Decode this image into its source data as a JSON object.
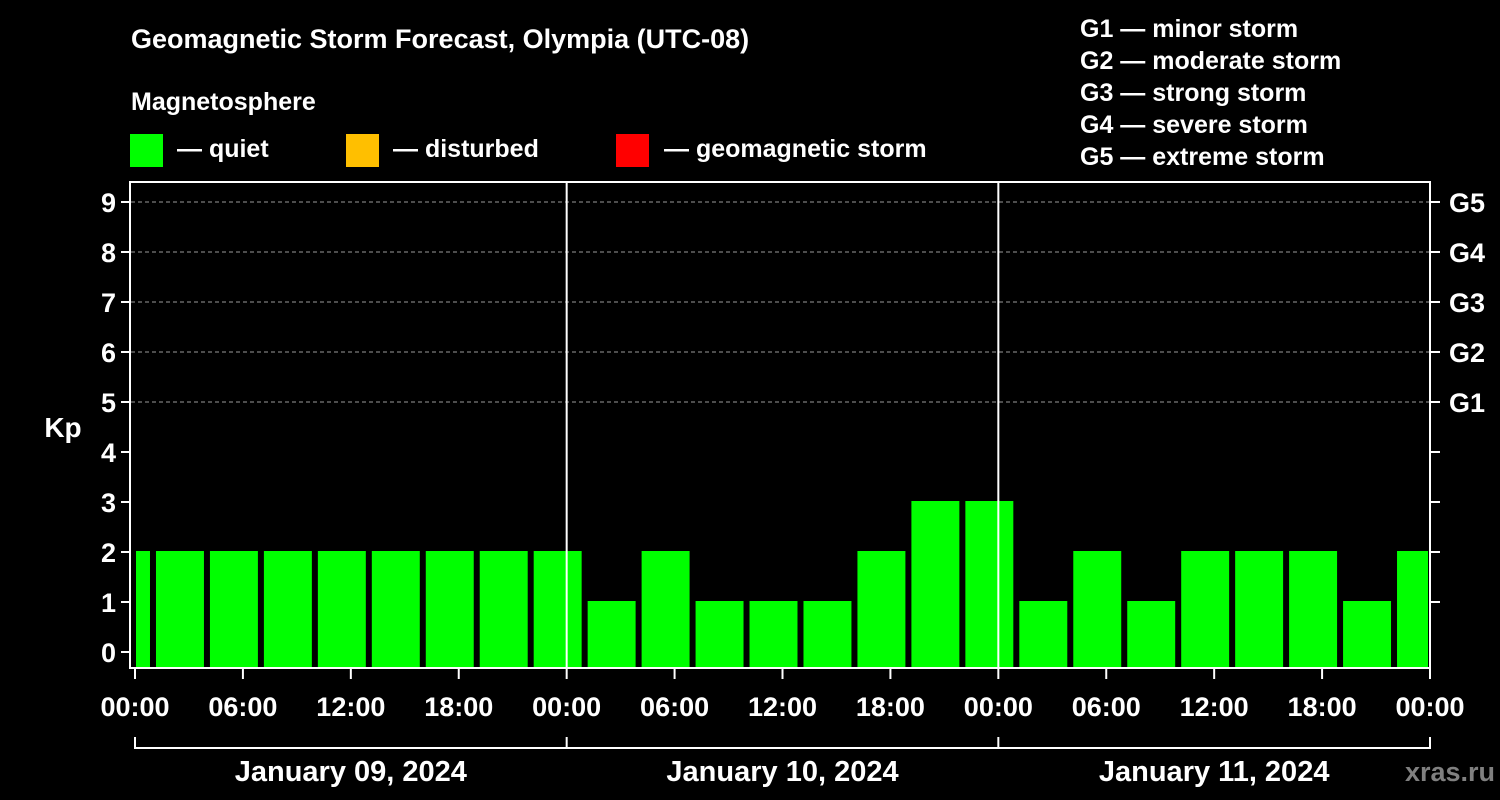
{
  "title": "Geomagnetic Storm Forecast, Olympia (UTC-08)",
  "legend": {
    "heading": "Magnetosphere",
    "items": [
      {
        "label": "— quiet",
        "color": "#00ff00"
      },
      {
        "label": "— disturbed",
        "color": "#ffbf00"
      },
      {
        "label": "— geomagnetic storm",
        "color": "#ff0000"
      }
    ]
  },
  "storm_scale": [
    "G1 — minor storm",
    "G2 — moderate storm",
    "G3 — strong storm",
    "G4 — severe storm",
    "G5 — extreme storm"
  ],
  "watermark": "xras.ru",
  "chart_data": {
    "type": "bar",
    "ylabel": "Kp",
    "ylim": [
      0,
      9
    ],
    "yticks": [
      "0",
      "1",
      "2",
      "3",
      "4",
      "5",
      "6",
      "7",
      "8",
      "9"
    ],
    "right_axis": [
      {
        "kp": 5,
        "label": "G1"
      },
      {
        "kp": 6,
        "label": "G2"
      },
      {
        "kp": 7,
        "label": "G3"
      },
      {
        "kp": 8,
        "label": "G4"
      },
      {
        "kp": 9,
        "label": "G5"
      }
    ],
    "xticks": [
      "00:00",
      "06:00",
      "12:00",
      "18:00",
      "00:00",
      "06:00",
      "12:00",
      "18:00",
      "00:00",
      "06:00",
      "12:00",
      "18:00",
      "00:00"
    ],
    "days": [
      "January 09, 2024",
      "January 10, 2024",
      "January 11, 2024"
    ],
    "grid": "dashed horizontal at Kp 5–9",
    "bar_interval_hours": 3,
    "first_bar_start_hour": -2,
    "values": [
      2,
      2,
      2,
      2,
      2,
      2,
      2,
      2,
      2,
      1,
      2,
      1,
      1,
      1,
      2,
      3,
      3,
      1,
      2,
      1,
      2,
      2,
      2,
      1,
      2
    ],
    "bar_color": "#00ff00"
  }
}
